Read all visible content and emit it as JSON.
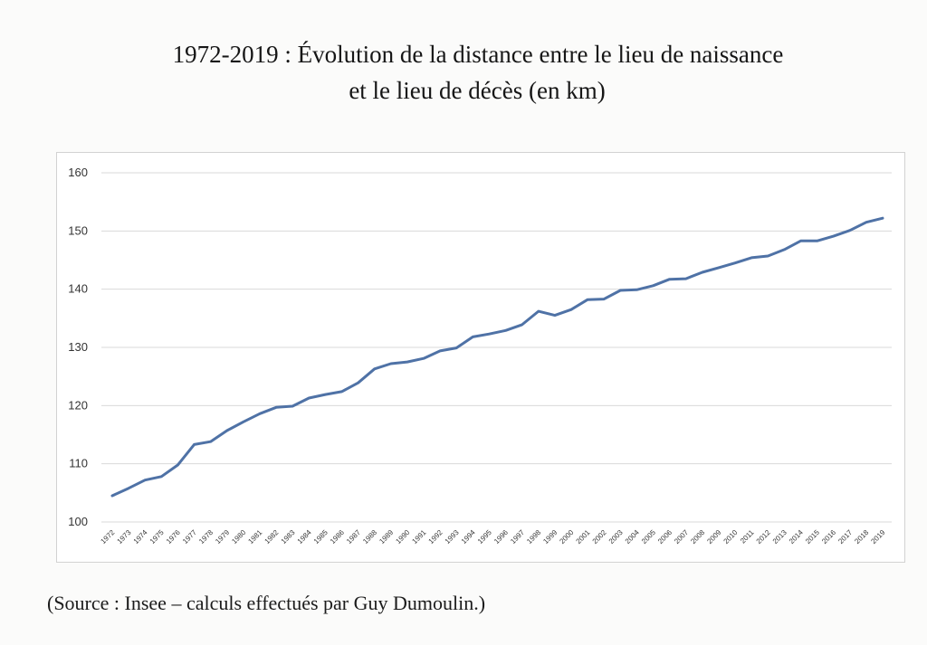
{
  "title": {
    "line1": "1972-2019 : Évolution de la distance entre le lieu de naissance",
    "line2": "et le lieu de décès (en km)"
  },
  "source": "(Source : Insee – calculs effectués par Guy Dumoulin.)",
  "chart_data": {
    "type": "line",
    "title": "1972-2019 : Évolution de la distance entre le lieu de naissance et le lieu de décès (en km)",
    "xlabel": "",
    "ylabel": "",
    "ylim": [
      100,
      160
    ],
    "yticks": [
      100,
      110,
      120,
      130,
      140,
      150,
      160
    ],
    "grid": true,
    "legend": "none",
    "line_color": "#4f72a6",
    "categories": [
      "1972",
      "1973",
      "1974",
      "1975",
      "1976",
      "1977",
      "1978",
      "1979",
      "1980",
      "1981",
      "1982",
      "1983",
      "1984",
      "1985",
      "1986",
      "1987",
      "1988",
      "1989",
      "1990",
      "1991",
      "1992",
      "1993",
      "1994",
      "1995",
      "1996",
      "1997",
      "1998",
      "1999",
      "2000",
      "2001",
      "2002",
      "2003",
      "2004",
      "2005",
      "2006",
      "2007",
      "2008",
      "2009",
      "2010",
      "2011",
      "2012",
      "2013",
      "2014",
      "2015",
      "2016",
      "2017",
      "2018",
      "2019"
    ],
    "series": [
      {
        "values": [
          104.5,
          105.8,
          107.2,
          107.8,
          109.8,
          113.3,
          113.8,
          115.7,
          117.2,
          118.6,
          119.7,
          119.9,
          121.3,
          121.9,
          122.4,
          123.9,
          126.3,
          127.2,
          127.5,
          128.1,
          129.4,
          129.9,
          131.8,
          132.3,
          132.9,
          133.9,
          136.2,
          135.5,
          136.5,
          138.2,
          138.3,
          139.8,
          139.9,
          140.6,
          141.7,
          141.8,
          142.9,
          143.7,
          144.5,
          145.4,
          145.7,
          146.8,
          148.3,
          148.3,
          149.1,
          150.1,
          151.5,
          152.2
        ]
      }
    ]
  }
}
